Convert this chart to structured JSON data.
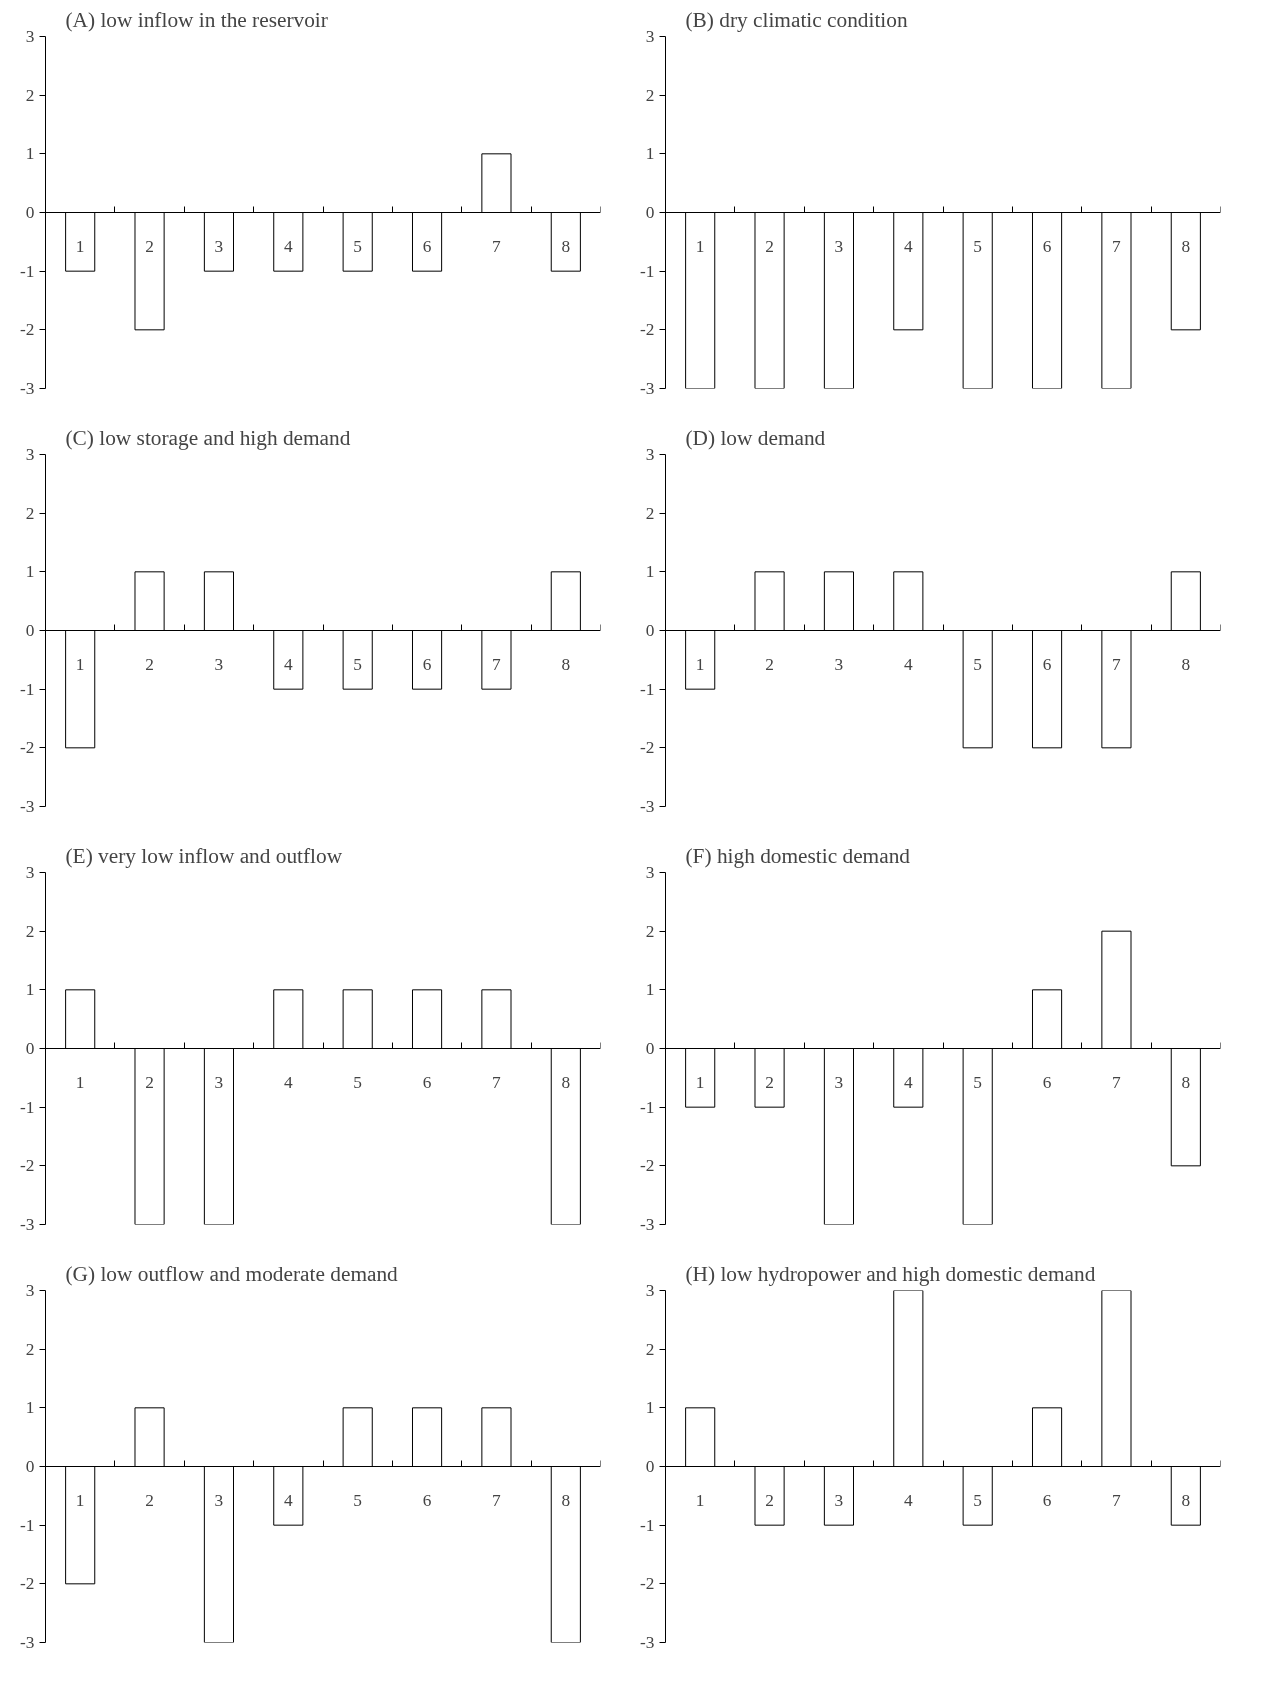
{
  "chart_data": [
    {
      "type": "bar",
      "title": "(A) low inflow in the reservoir",
      "categories": [
        "1",
        "2",
        "3",
        "4",
        "5",
        "6",
        "7",
        "8"
      ],
      "values": [
        -1,
        -2,
        -1,
        -1,
        -1,
        -1,
        1,
        -1
      ],
      "color": "#ffffff",
      "ylim": [
        -3,
        3
      ],
      "yticks": [
        -3,
        -2,
        -1,
        0,
        1,
        2,
        3
      ],
      "grid": false
    },
    {
      "type": "bar",
      "title": "(B) dry climatic condition",
      "categories": [
        "1",
        "2",
        "3",
        "4",
        "5",
        "6",
        "7",
        "8"
      ],
      "values": [
        -3,
        -3,
        -3,
        -2,
        -3,
        -3,
        -3,
        -2
      ],
      "color": "#ffffff",
      "ylim": [
        -3,
        3
      ],
      "yticks": [
        -3,
        -2,
        -1,
        0,
        1,
        2,
        3
      ],
      "grid": false
    },
    {
      "type": "bar",
      "title": "(C) low storage and high demand",
      "categories": [
        "1",
        "2",
        "3",
        "4",
        "5",
        "6",
        "7",
        "8"
      ],
      "values": [
        -2,
        1,
        1,
        -1,
        -1,
        -1,
        -1,
        1
      ],
      "color": "#ffffff",
      "ylim": [
        -3,
        3
      ],
      "yticks": [
        -3,
        -2,
        -1,
        0,
        1,
        2,
        3
      ],
      "grid": false
    },
    {
      "type": "bar",
      "title": "(D) low demand",
      "categories": [
        "1",
        "2",
        "3",
        "4",
        "5",
        "6",
        "7",
        "8"
      ],
      "values": [
        -1,
        1,
        1,
        1,
        -2,
        -2,
        -2,
        1
      ],
      "color": "#ffffff",
      "ylim": [
        -3,
        3
      ],
      "yticks": [
        -3,
        -2,
        -1,
        0,
        1,
        2,
        3
      ],
      "grid": false
    },
    {
      "type": "bar",
      "title": "(E) very low inflow and outflow",
      "categories": [
        "1",
        "2",
        "3",
        "4",
        "5",
        "6",
        "7",
        "8"
      ],
      "values": [
        1,
        -3,
        -3,
        1,
        1,
        1,
        1,
        -3
      ],
      "color": "#ffffff",
      "ylim": [
        -3,
        3
      ],
      "yticks": [
        -3,
        -2,
        -1,
        0,
        1,
        2,
        3
      ],
      "grid": false
    },
    {
      "type": "bar",
      "title": "(F) high domestic demand",
      "categories": [
        "1",
        "2",
        "3",
        "4",
        "5",
        "6",
        "7",
        "8"
      ],
      "values": [
        -1,
        -1,
        -3,
        -1,
        -3,
        1,
        2,
        -2
      ],
      "color": "#ffffff",
      "ylim": [
        -3,
        3
      ],
      "yticks": [
        -3,
        -2,
        -1,
        0,
        1,
        2,
        3
      ],
      "grid": false
    },
    {
      "type": "bar",
      "title": "(G) low outflow and moderate demand",
      "categories": [
        "1",
        "2",
        "3",
        "4",
        "5",
        "6",
        "7",
        "8"
      ],
      "values": [
        -2,
        1,
        -3,
        -1,
        1,
        1,
        1,
        -3
      ],
      "color": "#ffffff",
      "ylim": [
        -3,
        3
      ],
      "yticks": [
        -3,
        -2,
        -1,
        0,
        1,
        2,
        3
      ],
      "grid": false
    },
    {
      "type": "bar",
      "title": "(H) low hydropower and high domestic demand",
      "categories": [
        "1",
        "2",
        "3",
        "4",
        "5",
        "6",
        "7",
        "8"
      ],
      "values": [
        1,
        -1,
        -1,
        3,
        -1,
        1,
        3,
        -1
      ],
      "color": "#ffffff",
      "ylim": [
        -3,
        3
      ],
      "yticks": [
        -3,
        -2,
        -1,
        0,
        1,
        2,
        3
      ],
      "grid": false
    }
  ]
}
